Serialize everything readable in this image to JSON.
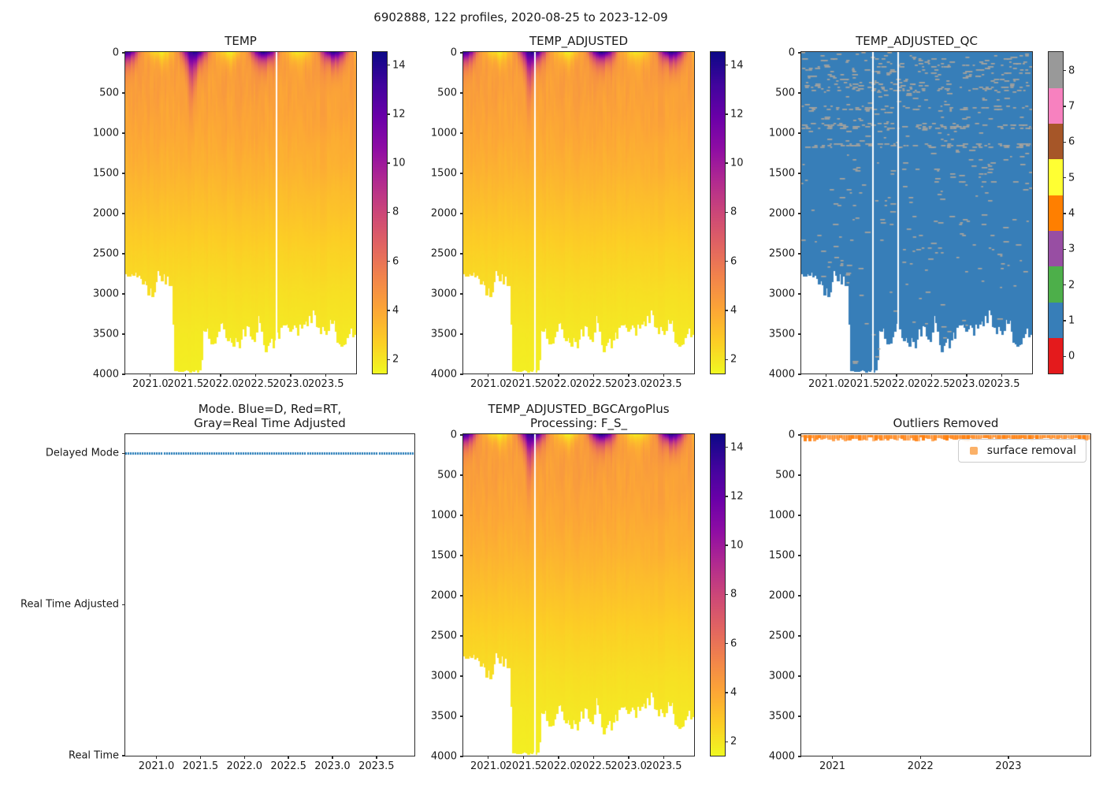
{
  "chart_data": {
    "type": "heatmap",
    "suptitle": "6902888, 122 profiles, 2020-08-25 to 2023-12-09",
    "float_id": "6902888",
    "n_profiles": 122,
    "date_start": "2020-08-25",
    "date_end": "2023-12-09",
    "time_range": [
      2020.655,
      2023.94
    ],
    "depth_range": [
      0,
      4000
    ],
    "depth_ticks": [
      0,
      500,
      1000,
      1500,
      2000,
      2500,
      3000,
      3500,
      4000
    ],
    "dense_xticks": {
      "values": [
        2021.0,
        2021.5,
        2022.0,
        2022.5,
        2023.0,
        2023.5
      ],
      "labels": [
        "2021.0",
        "2021.5",
        "2022.0",
        "2022.5",
        "2023.0",
        "2023.5"
      ]
    },
    "year_xticks": {
      "values": [
        2021,
        2022,
        2023
      ],
      "labels": [
        "2021",
        "2022",
        "2023"
      ]
    },
    "temp_colorbar": {
      "clim": [
        1.4,
        14.5
      ],
      "ticks": [
        2,
        4,
        6,
        8,
        10,
        12,
        14
      ]
    },
    "plasma_stops": [
      [
        0.0,
        "#0d0887"
      ],
      [
        0.1,
        "#41049d"
      ],
      [
        0.2,
        "#6a00a8"
      ],
      [
        0.3,
        "#8f0da4"
      ],
      [
        0.4,
        "#b12a90"
      ],
      [
        0.5,
        "#cc4778"
      ],
      [
        0.6,
        "#e16462"
      ],
      [
        0.7,
        "#f2844b"
      ],
      [
        0.8,
        "#fca636"
      ],
      [
        0.9,
        "#fcce25"
      ],
      [
        1.0,
        "#f0f921"
      ]
    ],
    "qc": {
      "clim": [
        -0.5,
        8.5
      ],
      "ticks": [
        0,
        1,
        2,
        3,
        4,
        5,
        6,
        7,
        8
      ],
      "colors": [
        "#e41a1c",
        "#377eb8",
        "#4daf4a",
        "#984ea3",
        "#ff7f00",
        "#ffff33",
        "#a65628",
        "#f781bf",
        "#999999"
      ],
      "base_flag": 1,
      "base_color": "#377eb8",
      "speckle_flag": 8,
      "speckle_render_color": "#b3a79a",
      "speckle_bands": [
        [
          0,
          30,
          0.05
        ],
        [
          30,
          430,
          0.11
        ],
        [
          430,
          485,
          0.3
        ],
        [
          485,
          650,
          0.035
        ],
        [
          650,
          725,
          0.28
        ],
        [
          725,
          880,
          0.03
        ],
        [
          880,
          955,
          0.28
        ],
        [
          955,
          1120,
          0.03
        ],
        [
          1120,
          1195,
          0.28
        ],
        [
          1195,
          1550,
          0.022
        ],
        [
          1550,
          2750,
          0.024
        ],
        [
          2750,
          4000,
          0.012
        ]
      ]
    },
    "temp_model": {
      "base_profile": [
        [
          0,
          4.6
        ],
        [
          300,
          4.4
        ],
        [
          1000,
          4.0
        ],
        [
          1500,
          3.6
        ],
        [
          2000,
          3.1
        ],
        [
          2500,
          2.6
        ],
        [
          3000,
          2.2
        ],
        [
          3500,
          1.9
        ],
        [
          4000,
          1.7
        ]
      ],
      "season_peak": 0.64,
      "warm_amp": 9.6,
      "cold_amp": 2.6,
      "warm_mld": 60,
      "warm_mld_gain": 60,
      "cold_mld": 125,
      "plume_time": 2021.6,
      "plume_halfwidth": 0.09,
      "plume_mld_factor": 3.2,
      "col_noise": 0.28
    },
    "bottom_envelope": [
      [
        2020.655,
        2820
      ],
      [
        2020.75,
        2760
      ],
      [
        2020.9,
        2900
      ],
      [
        2021.0,
        2980
      ],
      [
        2021.05,
        3140
      ],
      [
        2021.1,
        2760
      ],
      [
        2021.2,
        2800
      ],
      [
        2021.3,
        2850
      ],
      [
        2021.36,
        3960
      ],
      [
        2021.45,
        4000
      ],
      [
        2021.6,
        4000
      ],
      [
        2021.72,
        3980
      ],
      [
        2021.78,
        3400
      ],
      [
        2021.85,
        3600
      ],
      [
        2021.95,
        3650
      ],
      [
        2022.0,
        3300
      ],
      [
        2022.1,
        3520
      ],
      [
        2022.2,
        3600
      ],
      [
        2022.3,
        3620
      ],
      [
        2022.38,
        3420
      ],
      [
        2022.5,
        3700
      ],
      [
        2022.56,
        3320
      ],
      [
        2022.65,
        3700
      ],
      [
        2022.75,
        3650
      ],
      [
        2022.85,
        3520
      ],
      [
        2022.95,
        3350
      ],
      [
        2023.05,
        3480
      ],
      [
        2023.15,
        3440
      ],
      [
        2023.25,
        3330
      ],
      [
        2023.35,
        3300
      ],
      [
        2023.45,
        3520
      ],
      [
        2023.55,
        3450
      ],
      [
        2023.65,
        3380
      ],
      [
        2023.7,
        3620
      ],
      [
        2023.8,
        3560
      ],
      [
        2023.9,
        3460
      ],
      [
        2023.94,
        3450
      ]
    ],
    "bottom_noise": 90,
    "seed": 1337,
    "panels": [
      {
        "key": "temp",
        "title": "TEMP",
        "kind": "temp",
        "gaps": [
          2022.8
        ],
        "colorbar": "temp"
      },
      {
        "key": "temp_adjusted",
        "title": "TEMP_ADJUSTED",
        "kind": "temp",
        "gaps": [
          2021.665
        ],
        "colorbar": "temp"
      },
      {
        "key": "qc",
        "title": "TEMP_ADJUSTED_QC",
        "kind": "qc",
        "gaps": [
          2021.665,
          2022.02
        ],
        "colorbar": "qc"
      },
      {
        "key": "mode",
        "title": "Mode. Blue=D, Red=RT,\nGray=Real Time Adjusted",
        "kind": "mode",
        "gaps": [],
        "colorbar": null
      },
      {
        "key": "bgc",
        "title": "TEMP_ADJUSTED_BGCArgoPlus\nProcessing: F_S_",
        "kind": "temp",
        "gaps": [
          2021.665
        ],
        "colorbar": "temp"
      },
      {
        "key": "outliers",
        "title": "Outliers Removed",
        "kind": "outliers",
        "gaps": [],
        "colorbar": null
      }
    ],
    "mode_panel": {
      "ytick_labels": [
        "Delayed Mode",
        "Real Time Adjusted",
        "Real Time"
      ],
      "marker_color": "#1f77b4",
      "populated_row": "Delayed Mode"
    },
    "outliers_panel": {
      "band_color": "#ff7f0e",
      "band_depth_m": [
        0,
        60
      ],
      "legend_label": "surface removal",
      "legend_marker_color": "#fbb168"
    }
  }
}
